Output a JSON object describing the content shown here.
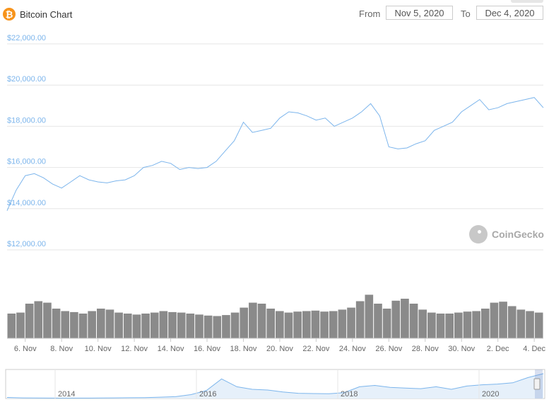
{
  "header": {
    "title": "Bitcoin Chart",
    "logo_icon": "bitcoin-icon",
    "logo_glyph": "₿",
    "from_label": "From",
    "from_value": "Nov 5, 2020",
    "to_label": "To",
    "to_value": "Dec 4, 2020"
  },
  "watermark": {
    "text": "CoinGecko",
    "icon": "gecko-icon"
  },
  "colors": {
    "line": "#7cb5ec",
    "grid": "#e6e6e6",
    "volume": "#8a8a8a",
    "axis_text_price": "#7cb5ec",
    "accent": "#f7931a"
  },
  "chart_data": [
    {
      "type": "line",
      "title": "",
      "ylabel": "",
      "y_ticks": [
        "$12,000.00",
        "$14,000.00",
        "$16,000.00",
        "$18,000.00",
        "$20,000.00",
        "$22,000.00"
      ],
      "ylim": [
        12000,
        22000
      ],
      "grid": true,
      "x_ticks": [
        "6. Nov",
        "8. Nov",
        "10. Nov",
        "12. Nov",
        "14. Nov",
        "16. Nov",
        "18. Nov",
        "20. Nov",
        "22. Nov",
        "24. Nov",
        "26. Nov",
        "28. Nov",
        "30. Nov",
        "2. Dec",
        "4. Dec"
      ],
      "x_range": [
        "2020-11-05",
        "2020-12-04"
      ],
      "series": [
        {
          "x": [
            "2020-11-05T00:00",
            "2020-11-05T12:00",
            "2020-11-06T00:00",
            "2020-11-06T12:00",
            "2020-11-07T00:00",
            "2020-11-07T12:00",
            "2020-11-08T00:00",
            "2020-11-08T12:00",
            "2020-11-09T00:00",
            "2020-11-09T12:00",
            "2020-11-10T00:00",
            "2020-11-10T12:00",
            "2020-11-11T00:00",
            "2020-11-11T12:00",
            "2020-11-12T00:00",
            "2020-11-12T12:00",
            "2020-11-13T00:00",
            "2020-11-13T12:00",
            "2020-11-14T00:00",
            "2020-11-14T12:00",
            "2020-11-15T00:00",
            "2020-11-15T12:00",
            "2020-11-16T00:00",
            "2020-11-16T12:00",
            "2020-11-17T00:00",
            "2020-11-17T12:00",
            "2020-11-18T00:00",
            "2020-11-18T12:00",
            "2020-11-19T00:00",
            "2020-11-19T12:00",
            "2020-11-20T00:00",
            "2020-11-20T12:00",
            "2020-11-21T00:00",
            "2020-11-21T12:00",
            "2020-11-22T00:00",
            "2020-11-22T12:00",
            "2020-11-23T00:00",
            "2020-11-23T12:00",
            "2020-11-24T00:00",
            "2020-11-24T12:00",
            "2020-11-25T00:00",
            "2020-11-25T12:00",
            "2020-11-26T00:00",
            "2020-11-26T12:00",
            "2020-11-27T00:00",
            "2020-11-27T12:00",
            "2020-11-28T00:00",
            "2020-11-28T12:00",
            "2020-11-29T00:00",
            "2020-11-29T12:00",
            "2020-11-30T00:00",
            "2020-11-30T12:00",
            "2020-12-01T00:00",
            "2020-12-01T12:00",
            "2020-12-02T00:00",
            "2020-12-02T12:00",
            "2020-12-03T00:00",
            "2020-12-03T12:00",
            "2020-12-04T00:00",
            "2020-12-04T12:00"
          ],
          "values": [
            13900,
            14900,
            15600,
            15700,
            15500,
            15200,
            15000,
            15300,
            15600,
            15400,
            15300,
            15250,
            15350,
            15400,
            15600,
            16000,
            16100,
            16300,
            16200,
            15900,
            16000,
            15950,
            16000,
            16300,
            16800,
            17300,
            18200,
            17700,
            17800,
            17900,
            18400,
            18700,
            18650,
            18500,
            18300,
            18400,
            18000,
            18200,
            18400,
            18700,
            19100,
            18500,
            17000,
            16900,
            16950,
            17150,
            17300,
            17800,
            18000,
            18200,
            18700,
            19000,
            19300,
            18800,
            18900,
            19100,
            19200,
            19300,
            19400,
            18900
          ]
        }
      ]
    },
    {
      "type": "bar",
      "title": "",
      "note": "volume",
      "x_range": [
        "2020-11-05",
        "2020-12-04"
      ],
      "values": [
        50,
        52,
        70,
        75,
        72,
        60,
        55,
        53,
        50,
        55,
        60,
        58,
        52,
        50,
        48,
        50,
        52,
        55,
        53,
        52,
        50,
        48,
        46,
        45,
        47,
        52,
        62,
        72,
        70,
        60,
        55,
        52,
        54,
        55,
        56,
        54,
        55,
        58,
        62,
        75,
        88,
        70,
        60,
        76,
        80,
        70,
        58,
        52,
        50,
        50,
        52,
        54,
        55,
        60,
        72,
        74,
        65,
        58,
        55,
        52
      ]
    },
    {
      "type": "area",
      "title": "",
      "note": "navigator",
      "x_ticks": [
        "2014",
        "2016",
        "2018",
        "2020"
      ],
      "x_range": [
        "2013",
        "2020-12"
      ],
      "values": [
        0.8,
        0.5,
        0.4,
        0.3,
        0.3,
        0.3,
        0.4,
        0.5,
        0.6,
        0.7,
        1.0,
        1.4,
        3.0,
        6.0,
        15.0,
        9.0,
        7.0,
        6.5,
        5.0,
        4.0,
        3.8,
        3.6,
        4.5,
        9.0,
        10.0,
        8.5,
        8.0,
        7.5,
        9.0,
        7.0,
        9.5,
        10.5,
        11.0,
        12.0,
        16.0,
        19.0
      ]
    }
  ]
}
